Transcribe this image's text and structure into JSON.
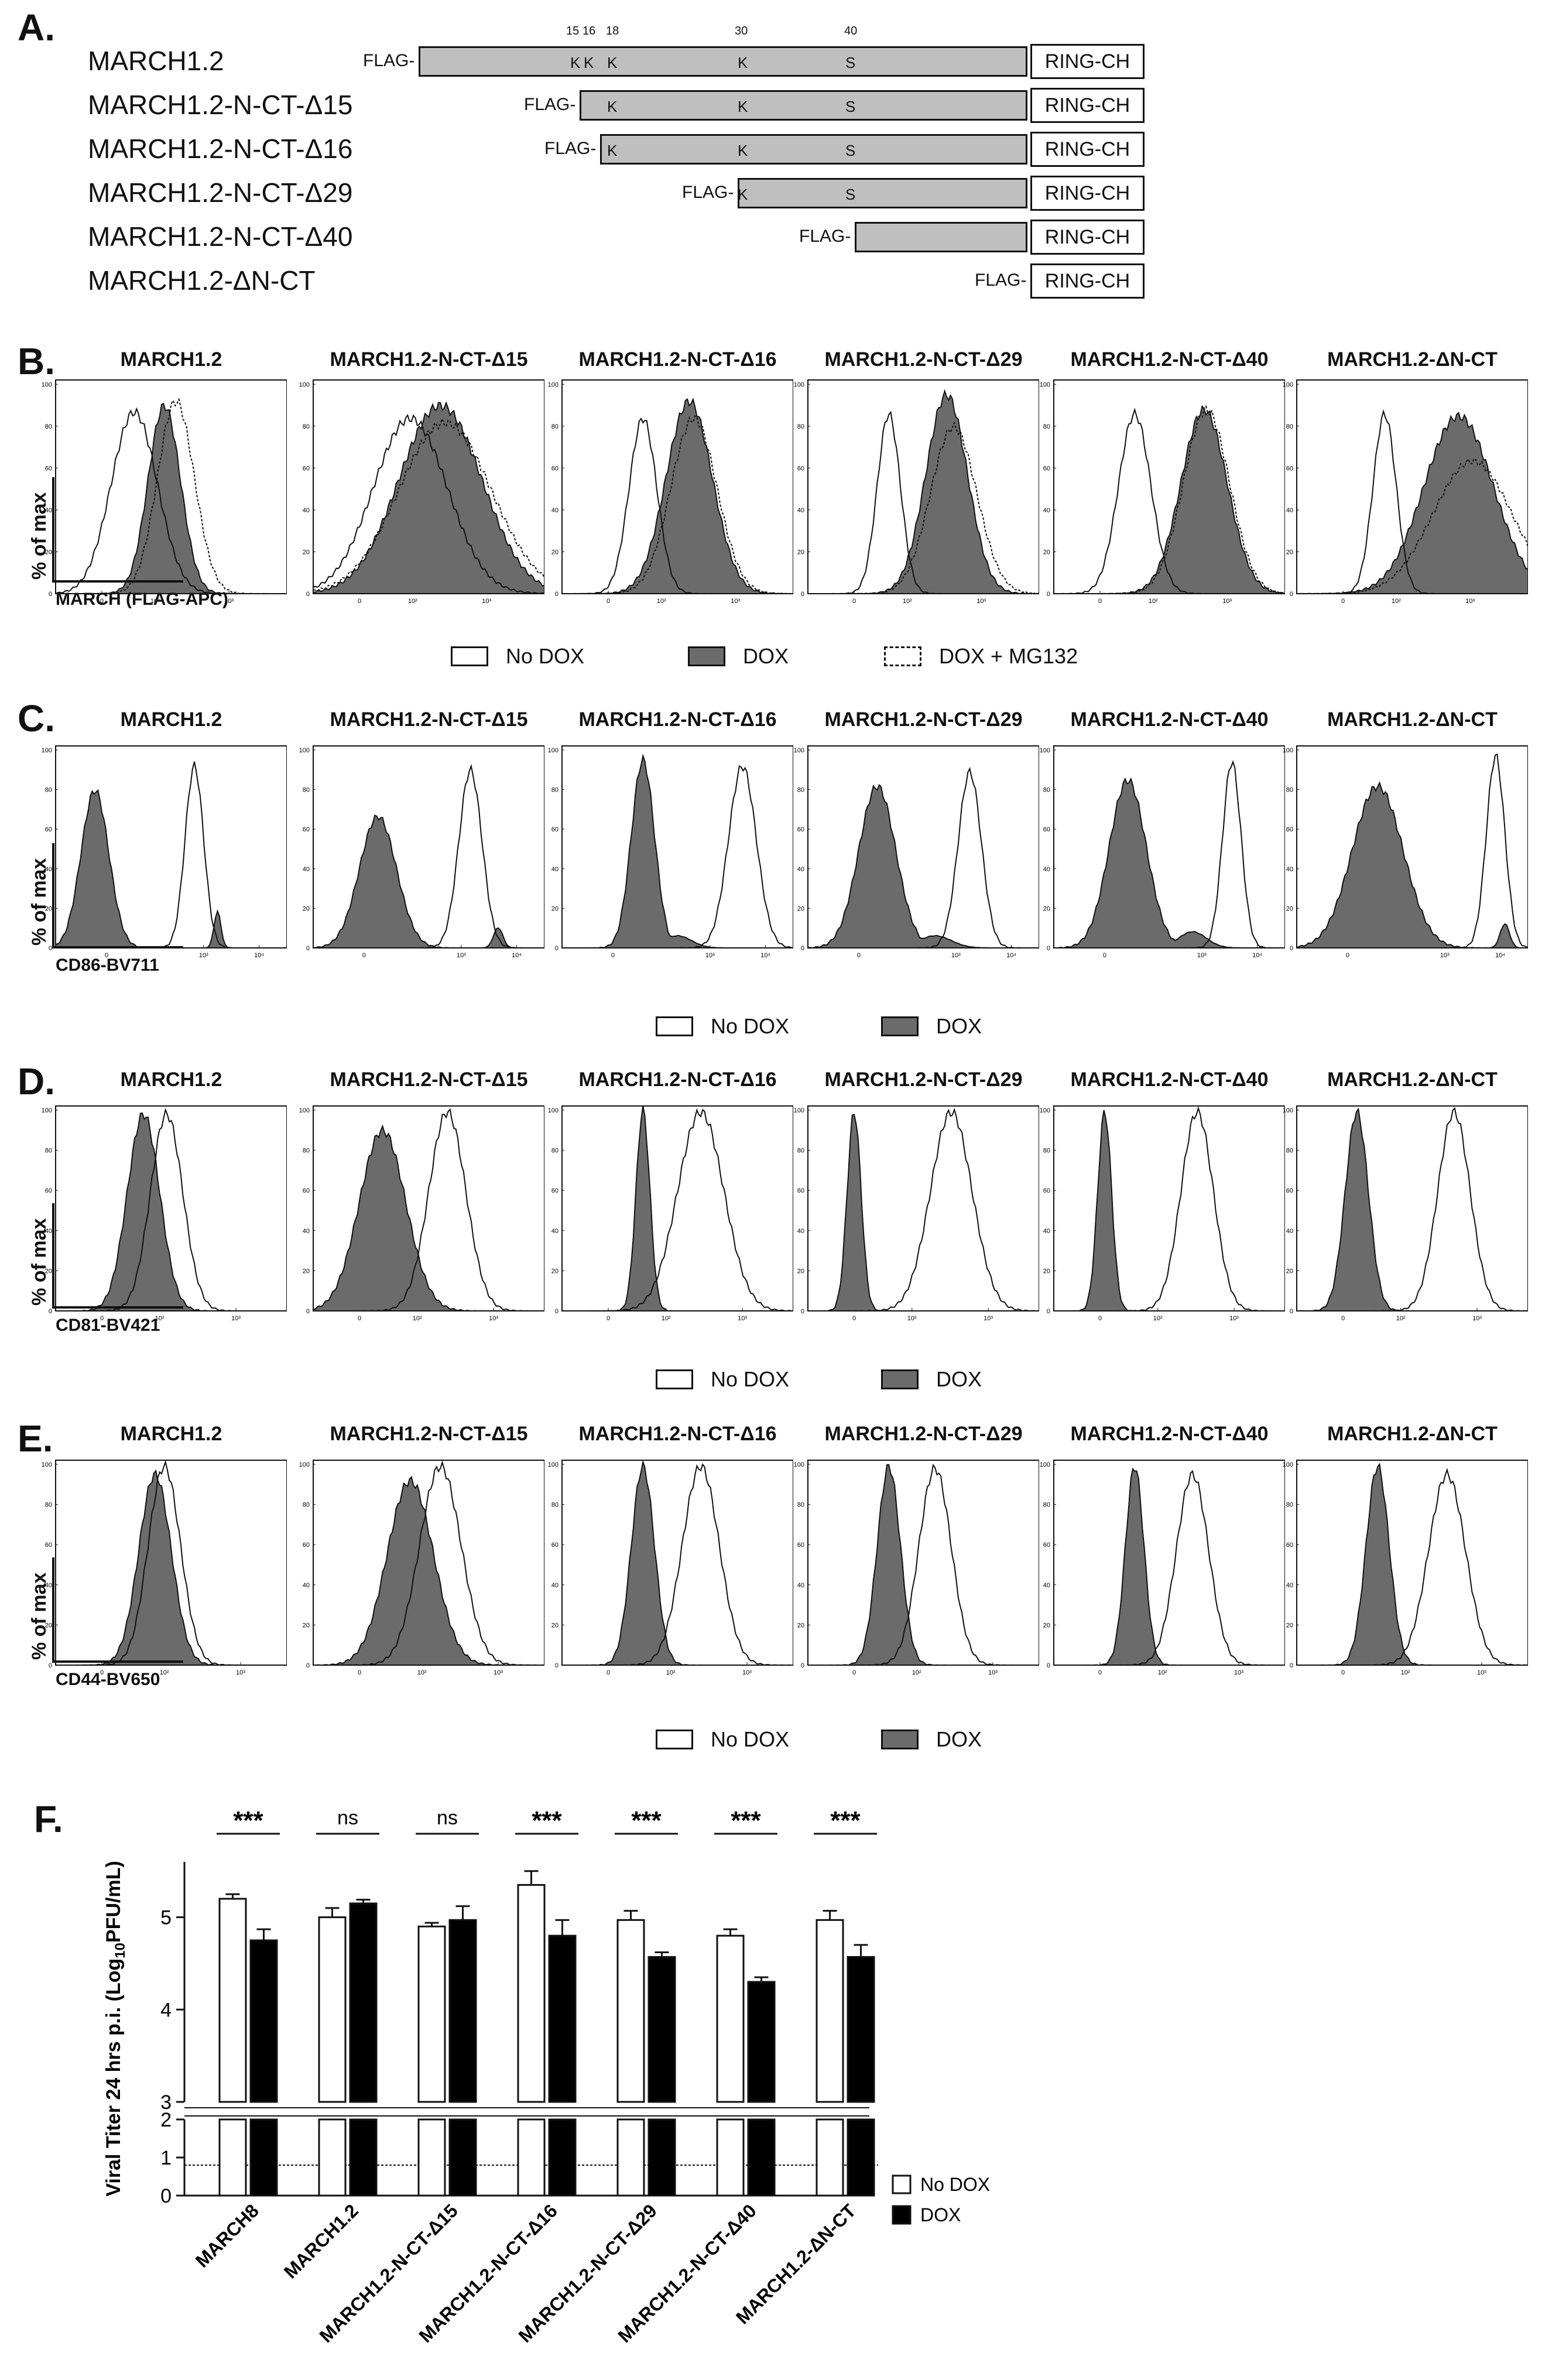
{
  "panels": {
    "A": "A.",
    "B": "B.",
    "C": "C.",
    "D": "D.",
    "E": "E.",
    "F": "F."
  },
  "construct_names": [
    "MARCH1.2",
    "MARCH1.2-N-CT-Δ15",
    "MARCH1.2-N-CT-Δ16",
    "MARCH1.2-N-CT-Δ29",
    "MARCH1.2-N-CT-Δ40",
    "MARCH1.2-ΔN-CT"
  ],
  "diagram": {
    "flag_label": "FLAG-",
    "ring_label": "RING-CH",
    "positions": [
      "15",
      "16",
      "18",
      "30",
      "40"
    ],
    "residues": {
      "row0": [
        "K",
        "K",
        "K",
        "K",
        "S"
      ],
      "row1": [
        "K",
        "K",
        "S"
      ],
      "row2": [
        "K",
        "K",
        "S"
      ],
      "row3": [
        "K",
        "S"
      ]
    }
  },
  "histogram_titles": [
    "MARCH1.2",
    "MARCH1.2-N-CT-Δ15",
    "MARCH1.2-N-CT-Δ16",
    "MARCH1.2-N-CT-Δ29",
    "MARCH1.2-N-CT-Δ40",
    "MARCH1.2-ΔN-CT"
  ],
  "y_axis_label": "% of max",
  "hist_yticks": [
    "100",
    "80",
    "60",
    "40",
    "20",
    "0"
  ],
  "B": {
    "xlabel": "MARCH (FLAG-APC)",
    "xticks": [
      "0",
      "10²",
      "10³"
    ],
    "legend": [
      "No DOX",
      "DOX",
      "DOX + MG132"
    ]
  },
  "C": {
    "xlabel": "CD86-BV711",
    "xticks": [
      "0",
      "10³",
      "10⁴"
    ],
    "legend": [
      "No DOX",
      "DOX"
    ]
  },
  "D": {
    "xlabel": "CD81-BV421",
    "xticks": [
      "0",
      "10²",
      "10³"
    ],
    "legend": [
      "No DOX",
      "DOX"
    ]
  },
  "E": {
    "xlabel": "CD44-BV650",
    "xticks": [
      "0",
      "10²",
      "10³"
    ],
    "legend": [
      "No DOX",
      "DOX"
    ]
  },
  "chart_data": {
    "type": "bar",
    "ylabel": "Viral Titer 24 hrs p.i. (Log10PFU/mL)",
    "ylabel_main": "Viral Titer 24 hrs p.i. (Log",
    "ylabel_sub": "10",
    "ylabel_end": "PFU/mL)",
    "categories": [
      "MARCH8",
      "MARCH1.2",
      "MARCH1.2-N-CT-Δ15",
      "MARCH1.2-N-CT-Δ16",
      "MARCH1.2-N-CT-Δ29",
      "MARCH1.2-N-CT-Δ40",
      "MARCH1.2-ΔN-CT"
    ],
    "series": [
      {
        "name": "No DOX",
        "values": [
          5.2,
          5.0,
          4.9,
          5.35,
          4.97,
          4.8,
          4.97
        ],
        "errors": [
          0.05,
          0.1,
          0.04,
          0.15,
          0.1,
          0.07,
          0.1
        ]
      },
      {
        "name": "DOX",
        "values": [
          4.75,
          5.15,
          4.97,
          4.8,
          4.57,
          4.3,
          4.57
        ],
        "errors": [
          0.12,
          0.04,
          0.15,
          0.17,
          0.05,
          0.05,
          0.13
        ]
      }
    ],
    "significance": [
      "***",
      "ns",
      "ns",
      "***",
      "***",
      "***",
      "***"
    ],
    "yticks_upper": [
      "3",
      "4",
      "5"
    ],
    "yticks_lower": [
      "0",
      "1",
      "2"
    ],
    "ylim_upper": [
      3,
      5.6
    ],
    "ylim_lower": [
      0,
      2
    ],
    "limit_of_detection": 0.8
  }
}
